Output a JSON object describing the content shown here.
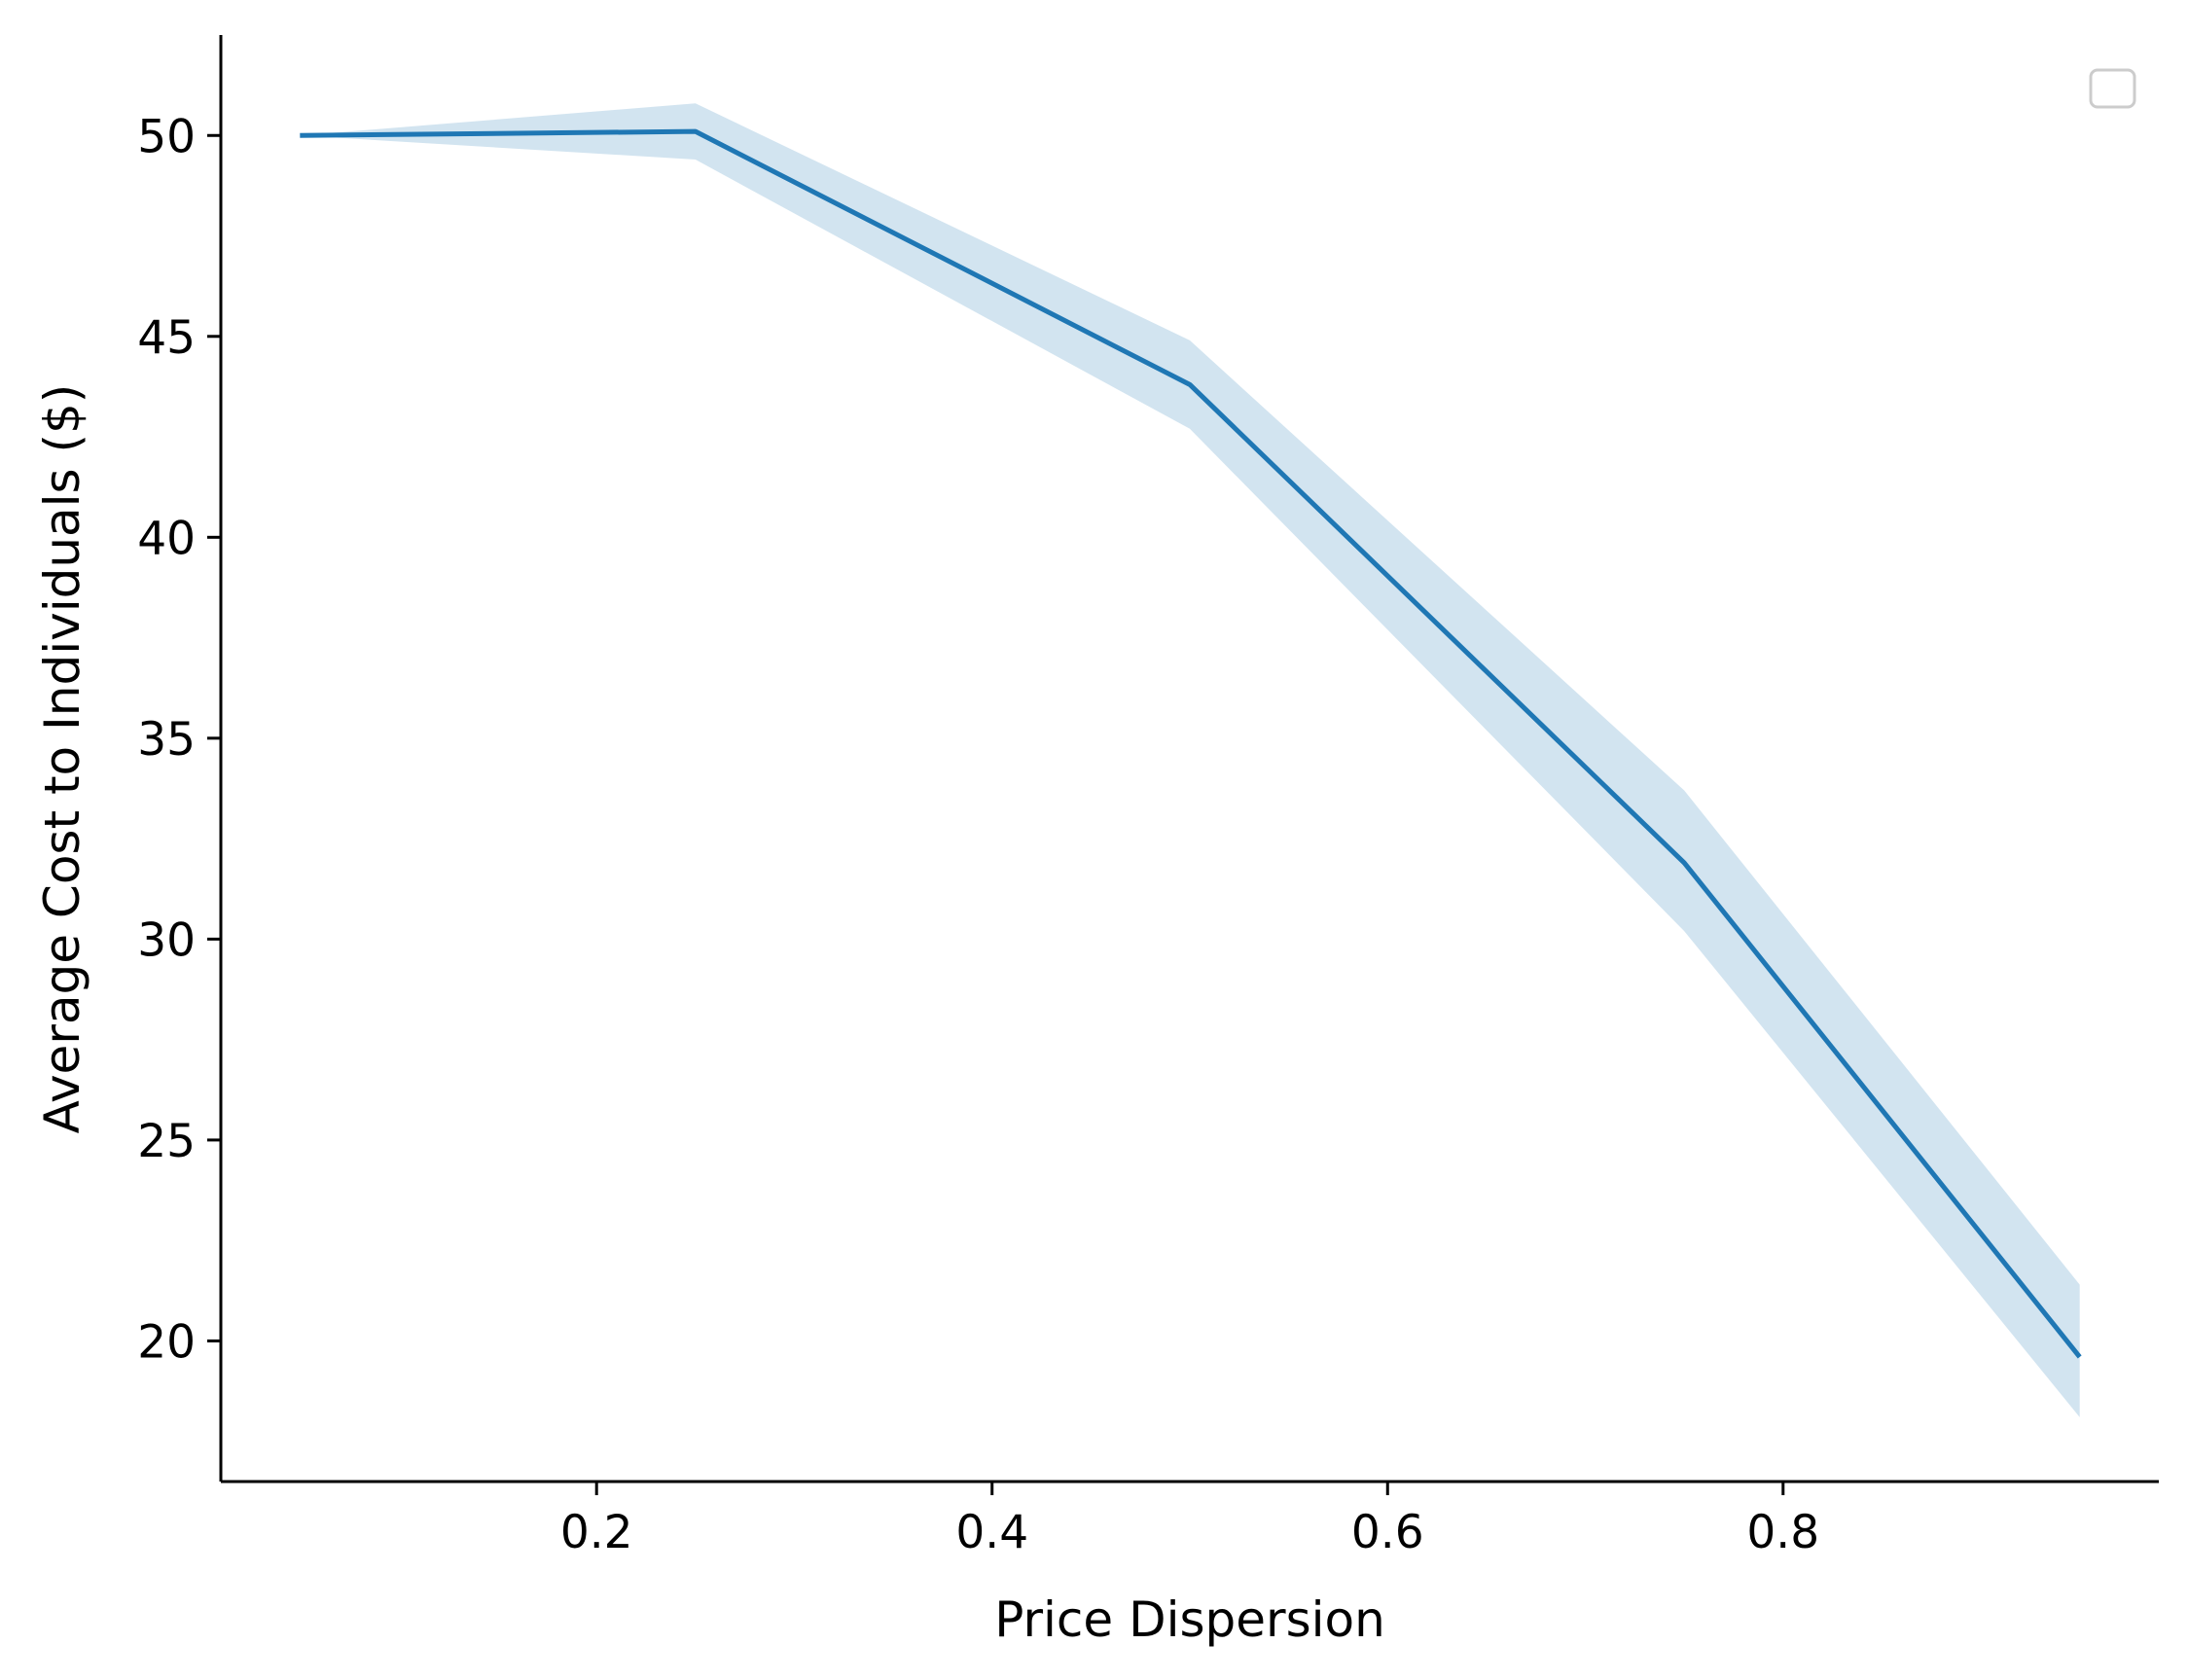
{
  "chart_data": {
    "type": "line",
    "title": "",
    "xlabel": "Price Dispersion",
    "ylabel": "Average Cost to Individuals ($)",
    "xlim": [
      0.01,
      0.99
    ],
    "ylim": [
      16.5,
      52.5
    ],
    "xticks": [
      0.2,
      0.4,
      0.6,
      0.8
    ],
    "xtick_labels": [
      "0.2",
      "0.4",
      "0.6",
      "0.8"
    ],
    "yticks": [
      20,
      25,
      30,
      35,
      40,
      45,
      50
    ],
    "ytick_labels": [
      "20",
      "25",
      "30",
      "35",
      "40",
      "45",
      "50"
    ],
    "grid": false,
    "legend": {
      "placement": "top-right",
      "entries": []
    },
    "series": [
      {
        "x": [
          0.05,
          0.25,
          0.5,
          0.75,
          0.95
        ],
        "y": [
          50.0,
          50.1,
          43.8,
          31.9,
          19.6
        ],
        "lower": [
          50.0,
          49.4,
          42.7,
          30.2,
          18.1
        ],
        "upper": [
          50.0,
          50.8,
          44.9,
          33.7,
          21.4
        ],
        "color": "#1f77b4",
        "band_color": "#1f77b4",
        "band_opacity": 0.2
      }
    ]
  }
}
